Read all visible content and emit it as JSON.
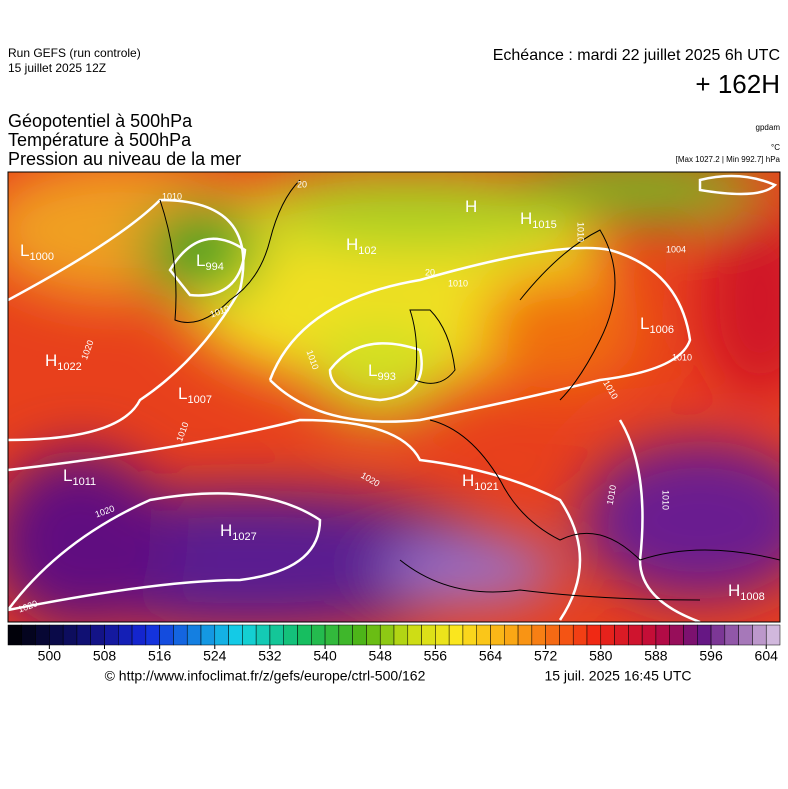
{
  "header": {
    "run": "Run GEFS (run controle)",
    "run_date": "15 juillet 2025 12Z",
    "valid": "Echéance : mardi 22 juillet 2025 6h UTC",
    "lead": "+ 162H",
    "titles": [
      "Géopotentiel à 500hPa",
      "Température à 500hPa",
      "Pression au niveau de la mer"
    ],
    "units": [
      "gpdam",
      "°C",
      "[Max 1027.2 | Min 992.7] hPa"
    ]
  },
  "centers": [
    {
      "letter": "L",
      "value": "1000"
    },
    {
      "letter": "L",
      "value": "994"
    },
    {
      "letter": "H",
      "value": "1022"
    },
    {
      "letter": "L",
      "value": "1007"
    },
    {
      "letter": "L",
      "value": "1011"
    },
    {
      "letter": "H",
      "value": "1027"
    },
    {
      "letter": "H",
      "value": "102"
    },
    {
      "letter": "L",
      "value": "993"
    },
    {
      "letter": "H"
    },
    {
      "letter": "H",
      "value": "1015"
    },
    {
      "letter": "L",
      "value": "1006"
    },
    {
      "letter": "H",
      "value": "1021"
    },
    {
      "letter": "H",
      "value": "1008"
    }
  ],
  "contour_labels": [
    "1010",
    "20",
    "1010",
    "1020",
    "1010",
    "1010",
    "1010",
    "20",
    "1010",
    "1004",
    "1010",
    "1010",
    "1020",
    "1020",
    "1010",
    "1010",
    "1020"
  ],
  "colorbar": {
    "clim": [
      494,
      606
    ],
    "ticks": [
      500,
      508,
      516,
      524,
      532,
      540,
      548,
      556,
      564,
      572,
      580,
      588,
      596,
      604
    ]
  },
  "footer": {
    "url": "© http://www.infoclimat.fr/z/gefs/europe/ctrl-500/162",
    "issued": "15 juil. 2025 16:45 UTC"
  }
}
